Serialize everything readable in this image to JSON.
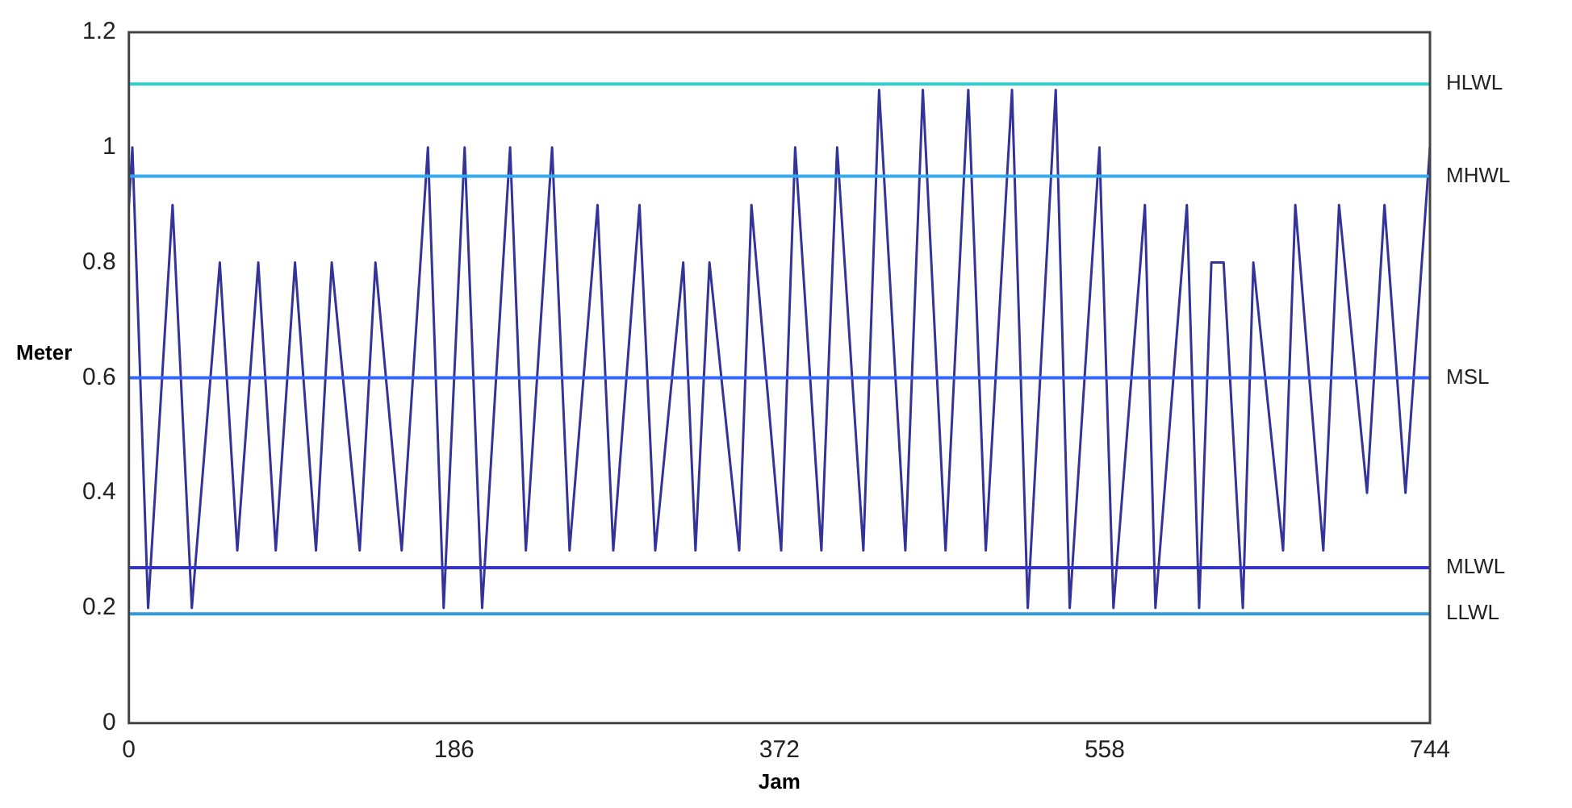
{
  "chart_data": {
    "type": "line",
    "xlabel": "Jam",
    "ylabel": "Meter",
    "x": [
      0,
      2,
      11,
      25,
      36,
      52,
      62,
      74,
      84,
      95,
      107,
      116,
      132,
      141,
      156,
      171,
      180,
      192,
      202,
      218,
      227,
      242,
      252,
      268,
      277,
      292,
      301,
      317,
      324,
      332,
      349,
      356,
      373,
      381,
      396,
      405,
      420,
      429,
      444,
      454,
      467,
      480,
      490,
      505,
      514,
      530,
      538,
      555,
      563,
      581,
      587,
      605,
      612,
      619,
      626,
      637,
      643,
      660,
      667,
      683,
      692,
      708,
      718,
      730,
      744
    ],
    "series": [
      {
        "color": "#333399",
        "values": [
          0.9,
          1.0,
          0.2,
          0.9,
          0.2,
          0.8,
          0.3,
          0.8,
          0.3,
          0.8,
          0.3,
          0.8,
          0.3,
          0.8,
          0.3,
          1.0,
          0.2,
          1.0,
          0.2,
          1.0,
          0.3,
          1.0,
          0.3,
          0.9,
          0.3,
          0.9,
          0.3,
          0.8,
          0.3,
          0.8,
          0.3,
          0.9,
          0.3,
          1.0,
          0.3,
          1.0,
          0.3,
          1.1,
          0.3,
          1.1,
          0.3,
          1.1,
          0.3,
          1.1,
          0.2,
          1.1,
          0.2,
          1.0,
          0.2,
          0.9,
          0.2,
          0.9,
          0.2,
          0.8,
          0.8,
          0.2,
          0.8,
          0.3,
          0.9,
          0.3,
          0.9,
          0.4,
          0.9,
          0.4,
          1.0
        ]
      }
    ],
    "xlim": [
      0,
      744
    ],
    "xticks": [
      0,
      186,
      372,
      558,
      744
    ],
    "ylim": [
      0,
      1.2
    ],
    "yticks": [
      0,
      0.2,
      0.4,
      0.6,
      0.8,
      1,
      1.2
    ],
    "ref_lines": [
      {
        "axis": "y",
        "value": 1.11,
        "label": "HLWL",
        "color": "#33cccc"
      },
      {
        "axis": "y",
        "value": 0.95,
        "label": "MHWL",
        "color": "#33aaee"
      },
      {
        "axis": "y",
        "value": 0.6,
        "label": "MSL",
        "color": "#3366ff"
      },
      {
        "axis": "y",
        "value": 0.27,
        "label": "MLWL",
        "color": "#3333cc"
      },
      {
        "axis": "y",
        "value": 0.19,
        "label": "LLWL",
        "color": "#3399dd"
      }
    ],
    "grid": false,
    "legend": false,
    "marker": "none",
    "line_style": "solid"
  }
}
